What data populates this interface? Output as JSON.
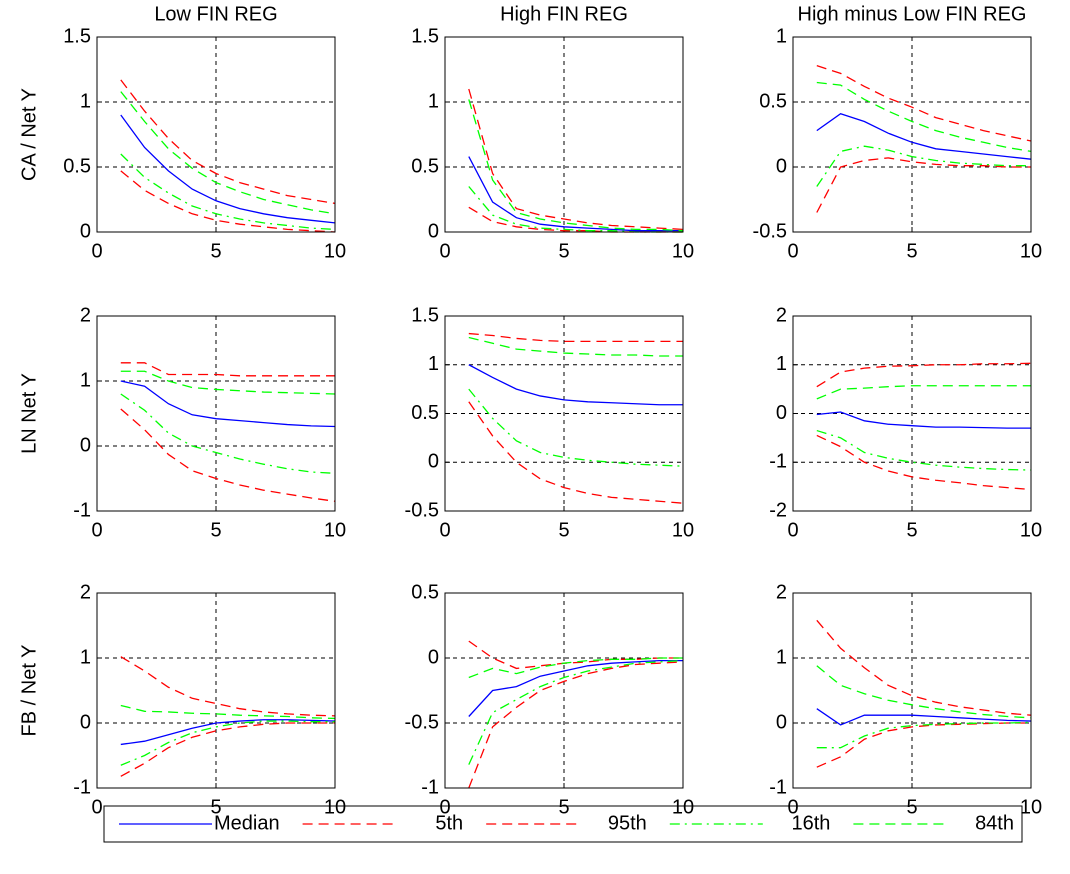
{
  "chart_data": [
    {
      "type": "line",
      "title": "Low FIN REG",
      "ylabel": "CA / Net Y",
      "x": [
        1,
        2,
        3,
        4,
        5,
        6,
        7,
        8,
        9,
        10
      ],
      "xlim": [
        0,
        10
      ],
      "xticks": [
        0,
        5,
        10
      ],
      "ylim": [
        0,
        1.5
      ],
      "yticks": [
        0,
        0.5,
        1,
        1.5
      ],
      "grid": true,
      "legend": "bottom",
      "series": [
        {
          "name": "Median",
          "color": "#0000ff",
          "dash": "solid",
          "values": [
            0.9,
            0.65,
            0.47,
            0.33,
            0.24,
            0.18,
            0.14,
            0.11,
            0.09,
            0.07
          ]
        },
        {
          "name": "5th",
          "color": "#ff0000",
          "dash": "dashed",
          "values": [
            0.47,
            0.32,
            0.22,
            0.14,
            0.09,
            0.06,
            0.04,
            0.02,
            0.01,
            0.0
          ]
        },
        {
          "name": "95th",
          "color": "#ff0000",
          "dash": "dashed",
          "values": [
            1.17,
            0.93,
            0.72,
            0.55,
            0.45,
            0.38,
            0.33,
            0.28,
            0.25,
            0.22
          ]
        },
        {
          "name": "16th",
          "color": "#00ff00",
          "dash": "dashdot",
          "values": [
            0.6,
            0.42,
            0.3,
            0.2,
            0.14,
            0.1,
            0.07,
            0.05,
            0.03,
            0.02
          ]
        },
        {
          "name": "84th",
          "color": "#00ff00",
          "dash": "dashed",
          "values": [
            1.08,
            0.85,
            0.64,
            0.49,
            0.38,
            0.31,
            0.25,
            0.21,
            0.17,
            0.14
          ]
        }
      ]
    },
    {
      "type": "line",
      "title": "High FIN REG",
      "x": [
        1,
        2,
        3,
        4,
        5,
        6,
        7,
        8,
        9,
        10
      ],
      "xlim": [
        0,
        10
      ],
      "xticks": [
        0,
        5,
        10
      ],
      "ylim": [
        0,
        1.5
      ],
      "yticks": [
        0,
        0.5,
        1,
        1.5
      ],
      "grid": true,
      "series": [
        {
          "name": "Median",
          "color": "#0000ff",
          "dash": "solid",
          "values": [
            0.58,
            0.23,
            0.11,
            0.06,
            0.04,
            0.03,
            0.02,
            0.01,
            0.01,
            0.01
          ]
        },
        {
          "name": "5th",
          "color": "#ff0000",
          "dash": "dashed",
          "values": [
            0.19,
            0.08,
            0.04,
            0.02,
            0.01,
            0.01,
            0,
            0,
            0,
            0
          ]
        },
        {
          "name": "95th",
          "color": "#ff0000",
          "dash": "dashed",
          "values": [
            1.1,
            0.45,
            0.18,
            0.13,
            0.1,
            0.07,
            0.05,
            0.04,
            0.03,
            0.02
          ]
        },
        {
          "name": "16th",
          "color": "#00ff00",
          "dash": "dashdot",
          "values": [
            0.35,
            0.13,
            0.06,
            0.03,
            0.02,
            0.01,
            0.01,
            0,
            0,
            0
          ]
        },
        {
          "name": "84th",
          "color": "#00ff00",
          "dash": "dashed",
          "values": [
            1.02,
            0.4,
            0.15,
            0.1,
            0.07,
            0.05,
            0.03,
            0.02,
            0.02,
            0.01
          ]
        }
      ]
    },
    {
      "type": "line",
      "title": "High minus Low FIN REG",
      "x": [
        1,
        2,
        3,
        4,
        5,
        6,
        7,
        8,
        9,
        10
      ],
      "xlim": [
        0,
        10
      ],
      "xticks": [
        0,
        5,
        10
      ],
      "ylim": [
        -0.5,
        1
      ],
      "yticks": [
        -0.5,
        0,
        0.5,
        1
      ],
      "grid": true,
      "series": [
        {
          "name": "Median",
          "color": "#0000ff",
          "dash": "solid",
          "values": [
            0.28,
            0.41,
            0.35,
            0.26,
            0.19,
            0.14,
            0.12,
            0.1,
            0.08,
            0.06
          ]
        },
        {
          "name": "5th",
          "color": "#ff0000",
          "dash": "dashed",
          "values": [
            -0.35,
            0.0,
            0.05,
            0.07,
            0.04,
            0.02,
            0.01,
            0.01,
            0,
            0
          ]
        },
        {
          "name": "95th",
          "color": "#ff0000",
          "dash": "dashed",
          "values": [
            0.78,
            0.72,
            0.62,
            0.53,
            0.46,
            0.38,
            0.33,
            0.28,
            0.24,
            0.2
          ]
        },
        {
          "name": "16th",
          "color": "#00ff00",
          "dash": "dashdot",
          "values": [
            -0.15,
            0.12,
            0.16,
            0.13,
            0.08,
            0.05,
            0.03,
            0.02,
            0.01,
            0.01
          ]
        },
        {
          "name": "84th",
          "color": "#00ff00",
          "dash": "dashed",
          "values": [
            0.65,
            0.63,
            0.52,
            0.43,
            0.35,
            0.28,
            0.23,
            0.19,
            0.15,
            0.12
          ]
        }
      ]
    },
    {
      "type": "line",
      "ylabel": "LN Net Y",
      "x": [
        1,
        2,
        3,
        4,
        5,
        6,
        7,
        8,
        9,
        10
      ],
      "xlim": [
        0,
        10
      ],
      "xticks": [
        0,
        5,
        10
      ],
      "ylim": [
        -1,
        2
      ],
      "yticks": [
        -1,
        0,
        1,
        2
      ],
      "grid": true,
      "series": [
        {
          "name": "Median",
          "color": "#0000ff",
          "dash": "solid",
          "values": [
            1.0,
            0.92,
            0.65,
            0.48,
            0.42,
            0.39,
            0.36,
            0.33,
            0.31,
            0.3
          ]
        },
        {
          "name": "5th",
          "color": "#ff0000",
          "dash": "dashed",
          "values": [
            0.57,
            0.25,
            -0.13,
            -0.38,
            -0.5,
            -0.6,
            -0.68,
            -0.74,
            -0.8,
            -0.85
          ]
        },
        {
          "name": "95th",
          "color": "#ff0000",
          "dash": "dashed",
          "values": [
            1.28,
            1.28,
            1.1,
            1.1,
            1.1,
            1.08,
            1.08,
            1.08,
            1.08,
            1.08
          ]
        },
        {
          "name": "16th",
          "color": "#00ff00",
          "dash": "dashdot",
          "values": [
            0.8,
            0.55,
            0.2,
            0.0,
            -0.1,
            -0.2,
            -0.28,
            -0.35,
            -0.4,
            -0.42
          ]
        },
        {
          "name": "84th",
          "color": "#00ff00",
          "dash": "dashed",
          "values": [
            1.15,
            1.15,
            1.0,
            0.9,
            0.87,
            0.85,
            0.83,
            0.82,
            0.81,
            0.8
          ]
        }
      ]
    },
    {
      "type": "line",
      "x": [
        1,
        2,
        3,
        4,
        5,
        6,
        7,
        8,
        9,
        10
      ],
      "xlim": [
        0,
        10
      ],
      "xticks": [
        0,
        5,
        10
      ],
      "ylim": [
        -0.5,
        1.5
      ],
      "yticks": [
        -0.5,
        0,
        0.5,
        1,
        1.5
      ],
      "grid": true,
      "series": [
        {
          "name": "Median",
          "color": "#0000ff",
          "dash": "solid",
          "values": [
            1.0,
            0.87,
            0.75,
            0.68,
            0.64,
            0.62,
            0.61,
            0.6,
            0.59,
            0.59
          ]
        },
        {
          "name": "5th",
          "color": "#ff0000",
          "dash": "dashed",
          "values": [
            0.62,
            0.27,
            0.0,
            -0.17,
            -0.26,
            -0.32,
            -0.36,
            -0.38,
            -0.4,
            -0.42
          ]
        },
        {
          "name": "95th",
          "color": "#ff0000",
          "dash": "dashed",
          "values": [
            1.32,
            1.3,
            1.27,
            1.25,
            1.24,
            1.24,
            1.24,
            1.24,
            1.24,
            1.24
          ]
        },
        {
          "name": "16th",
          "color": "#00ff00",
          "dash": "dashdot",
          "values": [
            0.75,
            0.45,
            0.22,
            0.1,
            0.05,
            0.02,
            0.0,
            -0.02,
            -0.03,
            -0.04
          ]
        },
        {
          "name": "84th",
          "color": "#00ff00",
          "dash": "dashed",
          "values": [
            1.28,
            1.22,
            1.16,
            1.14,
            1.12,
            1.11,
            1.1,
            1.1,
            1.09,
            1.09
          ]
        }
      ]
    },
    {
      "type": "line",
      "x": [
        1,
        2,
        3,
        4,
        5,
        6,
        7,
        8,
        9,
        10
      ],
      "xlim": [
        0,
        10
      ],
      "xticks": [
        0,
        5,
        10
      ],
      "ylim": [
        -2,
        2
      ],
      "yticks": [
        -2,
        -1,
        0,
        1,
        2
      ],
      "grid": true,
      "series": [
        {
          "name": "Median",
          "color": "#0000ff",
          "dash": "solid",
          "values": [
            -0.02,
            0.03,
            -0.15,
            -0.22,
            -0.25,
            -0.28,
            -0.28,
            -0.29,
            -0.3,
            -0.3
          ]
        },
        {
          "name": "5th",
          "color": "#ff0000",
          "dash": "dashed",
          "values": [
            -0.45,
            -0.68,
            -1.0,
            -1.18,
            -1.3,
            -1.37,
            -1.42,
            -1.48,
            -1.52,
            -1.56
          ]
        },
        {
          "name": "95th",
          "color": "#ff0000",
          "dash": "dashed",
          "values": [
            0.55,
            0.85,
            0.93,
            0.97,
            0.98,
            1.0,
            1.0,
            1.02,
            1.02,
            1.03
          ]
        },
        {
          "name": "16th",
          "color": "#00ff00",
          "dash": "dashdot",
          "values": [
            -0.35,
            -0.5,
            -0.8,
            -0.92,
            -1.0,
            -1.06,
            -1.1,
            -1.13,
            -1.15,
            -1.16
          ]
        },
        {
          "name": "84th",
          "color": "#00ff00",
          "dash": "dashed",
          "values": [
            0.3,
            0.5,
            0.52,
            0.55,
            0.57,
            0.57,
            0.57,
            0.57,
            0.57,
            0.57
          ]
        }
      ]
    },
    {
      "type": "line",
      "ylabel": "FB / Net Y",
      "x": [
        1,
        2,
        3,
        4,
        5,
        6,
        7,
        8,
        9,
        10
      ],
      "xlim": [
        0,
        10
      ],
      "xticks": [
        0,
        5,
        10
      ],
      "ylim": [
        -1,
        2
      ],
      "yticks": [
        -1,
        0,
        1,
        2
      ],
      "grid": true,
      "series": [
        {
          "name": "Median",
          "color": "#0000ff",
          "dash": "solid",
          "values": [
            -0.33,
            -0.28,
            -0.18,
            -0.08,
            0.0,
            0.03,
            0.05,
            0.05,
            0.04,
            0.03
          ]
        },
        {
          "name": "5th",
          "color": "#ff0000",
          "dash": "dashed",
          "values": [
            -0.82,
            -0.62,
            -0.38,
            -0.22,
            -0.12,
            -0.06,
            -0.02,
            0.0,
            0.0,
            0.0
          ]
        },
        {
          "name": "95th",
          "color": "#ff0000",
          "dash": "dashed",
          "values": [
            1.02,
            0.8,
            0.55,
            0.38,
            0.3,
            0.22,
            0.17,
            0.14,
            0.12,
            0.11
          ]
        },
        {
          "name": "16th",
          "color": "#00ff00",
          "dash": "dashdot",
          "values": [
            -0.65,
            -0.5,
            -0.3,
            -0.15,
            -0.06,
            0.0,
            0.03,
            0.03,
            0.02,
            0.02
          ]
        },
        {
          "name": "84th",
          "color": "#00ff00",
          "dash": "dashed",
          "values": [
            0.27,
            0.18,
            0.17,
            0.15,
            0.14,
            0.12,
            0.11,
            0.1,
            0.08,
            0.07
          ]
        }
      ]
    },
    {
      "type": "line",
      "x": [
        1,
        2,
        3,
        4,
        5,
        6,
        7,
        8,
        9,
        10
      ],
      "xlim": [
        0,
        10
      ],
      "xticks": [
        0,
        5,
        10
      ],
      "ylim": [
        -1,
        0.5
      ],
      "yticks": [
        -1,
        -0.5,
        0,
        0.5
      ],
      "grid": true,
      "series": [
        {
          "name": "Median",
          "color": "#0000ff",
          "dash": "solid",
          "values": [
            -0.45,
            -0.25,
            -0.22,
            -0.14,
            -0.1,
            -0.06,
            -0.04,
            -0.03,
            -0.02,
            -0.02
          ]
        },
        {
          "name": "5th",
          "color": "#ff0000",
          "dash": "dashed",
          "values": [
            -1.0,
            -0.53,
            -0.38,
            -0.25,
            -0.18,
            -0.12,
            -0.08,
            -0.05,
            -0.04,
            -0.03
          ]
        },
        {
          "name": "95th",
          "color": "#ff0000",
          "dash": "dashed",
          "values": [
            0.13,
            0.0,
            -0.08,
            -0.06,
            -0.04,
            -0.03,
            -0.01,
            -0.01,
            0.0,
            0.0
          ]
        },
        {
          "name": "16th",
          "color": "#00ff00",
          "dash": "dashdot",
          "values": [
            -0.82,
            -0.42,
            -0.32,
            -0.22,
            -0.15,
            -0.1,
            -0.07,
            -0.04,
            -0.03,
            -0.02
          ]
        },
        {
          "name": "84th",
          "color": "#00ff00",
          "dash": "dashed",
          "values": [
            -0.15,
            -0.08,
            -0.12,
            -0.07,
            -0.04,
            -0.02,
            -0.01,
            -0.01,
            0,
            0
          ]
        }
      ]
    },
    {
      "type": "line",
      "x": [
        1,
        2,
        3,
        4,
        5,
        6,
        7,
        8,
        9,
        10
      ],
      "xlim": [
        0,
        10
      ],
      "xticks": [
        0,
        5,
        10
      ],
      "ylim": [
        -1,
        2
      ],
      "yticks": [
        -1,
        0,
        1,
        2
      ],
      "grid": true,
      "series": [
        {
          "name": "Median",
          "color": "#0000ff",
          "dash": "solid",
          "values": [
            0.22,
            -0.03,
            0.12,
            0.12,
            0.12,
            0.1,
            0.08,
            0.06,
            0.04,
            0.03
          ]
        },
        {
          "name": "5th",
          "color": "#ff0000",
          "dash": "dashed",
          "values": [
            -0.68,
            -0.52,
            -0.25,
            -0.12,
            -0.06,
            -0.03,
            -0.02,
            -0.01,
            0.0,
            0.0
          ]
        },
        {
          "name": "95th",
          "color": "#ff0000",
          "dash": "dashed",
          "values": [
            1.58,
            1.15,
            0.85,
            0.58,
            0.42,
            0.32,
            0.25,
            0.2,
            0.15,
            0.12
          ]
        },
        {
          "name": "16th",
          "color": "#00ff00",
          "dash": "dashdot",
          "values": [
            -0.38,
            -0.38,
            -0.2,
            -0.08,
            -0.04,
            -0.02,
            -0.01,
            0.0,
            0.0,
            0.01
          ]
        },
        {
          "name": "84th",
          "color": "#00ff00",
          "dash": "dashed",
          "values": [
            0.88,
            0.58,
            0.45,
            0.35,
            0.28,
            0.22,
            0.17,
            0.13,
            0.1,
            0.08
          ]
        }
      ]
    }
  ]
}
